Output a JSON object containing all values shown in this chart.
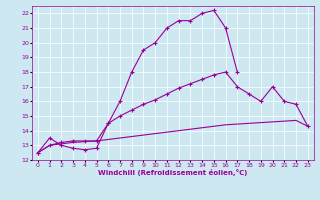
{
  "xlabel": "Windchill (Refroidissement éolien,°C)",
  "background_color": "#cde8f0",
  "grid_color": "#ffffff",
  "line_color": "#990099",
  "xlim": [
    -0.5,
    23.5
  ],
  "ylim": [
    12,
    22.5
  ],
  "xticks": [
    0,
    1,
    2,
    3,
    4,
    5,
    6,
    7,
    8,
    9,
    10,
    11,
    12,
    13,
    14,
    15,
    16,
    17,
    18,
    19,
    20,
    21,
    22,
    23
  ],
  "yticks": [
    12,
    13,
    14,
    15,
    16,
    17,
    18,
    19,
    20,
    21,
    22
  ],
  "curve1_x": [
    0,
    1,
    2,
    3,
    4,
    5,
    6,
    7,
    8,
    9,
    10,
    11,
    12,
    13,
    14,
    15,
    16,
    17
  ],
  "curve1_y": [
    12.5,
    13.5,
    13.0,
    12.8,
    12.7,
    12.8,
    14.5,
    16.0,
    18.0,
    19.5,
    20.0,
    21.0,
    21.5,
    21.5,
    22.0,
    22.2,
    21.0,
    18.0
  ],
  "curve2_x": [
    0,
    1,
    2,
    3,
    4,
    5,
    6,
    7,
    8,
    9,
    10,
    11,
    12,
    13,
    14,
    15,
    16,
    17,
    18,
    19,
    20,
    21,
    22,
    23
  ],
  "curve2_y": [
    12.5,
    13.0,
    13.2,
    13.3,
    13.3,
    13.3,
    14.5,
    15.0,
    15.4,
    15.8,
    16.1,
    16.5,
    16.9,
    17.2,
    17.5,
    17.8,
    18.0,
    17.0,
    16.5,
    16.0,
    17.0,
    16.0,
    15.8,
    14.3
  ],
  "curve3_x": [
    0,
    1,
    2,
    3,
    4,
    5,
    6,
    7,
    8,
    9,
    10,
    11,
    12,
    13,
    14,
    15,
    16,
    17,
    18,
    19,
    20,
    21,
    22,
    23
  ],
  "curve3_y": [
    12.5,
    13.0,
    13.1,
    13.2,
    13.25,
    13.3,
    13.4,
    13.5,
    13.6,
    13.7,
    13.8,
    13.9,
    14.0,
    14.1,
    14.2,
    14.3,
    14.4,
    14.45,
    14.5,
    14.55,
    14.6,
    14.65,
    14.7,
    14.3
  ]
}
